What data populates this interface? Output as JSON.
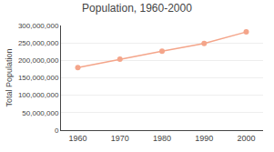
{
  "chart_data": {
    "type": "line",
    "title": "Population, 1960-2000",
    "ylabel": "Total Population",
    "x": [
      1960,
      1970,
      1980,
      1990,
      2000
    ],
    "values": [
      179323175,
      203302031,
      226545805,
      248709873,
      281421906
    ],
    "color": "#f4a58a",
    "marker": "circle",
    "xlim": [
      1956,
      2004
    ],
    "xticks": [
      1960,
      1970,
      1980,
      1990,
      2000
    ],
    "ylim": [
      0,
      300000000
    ],
    "yticks": [
      0,
      {
        "value": 50000000,
        "label": "50,000,000"
      },
      {
        "value": 100000000,
        "label": "100,000,000"
      },
      {
        "value": 150000000,
        "label": "150,000,000"
      },
      {
        "value": 200000000,
        "label": "200,000,000"
      },
      {
        "value": 250000000,
        "label": "250,000,000"
      },
      {
        "value": 300000000,
        "label": "300,000,000"
      }
    ],
    "grid": true
  }
}
